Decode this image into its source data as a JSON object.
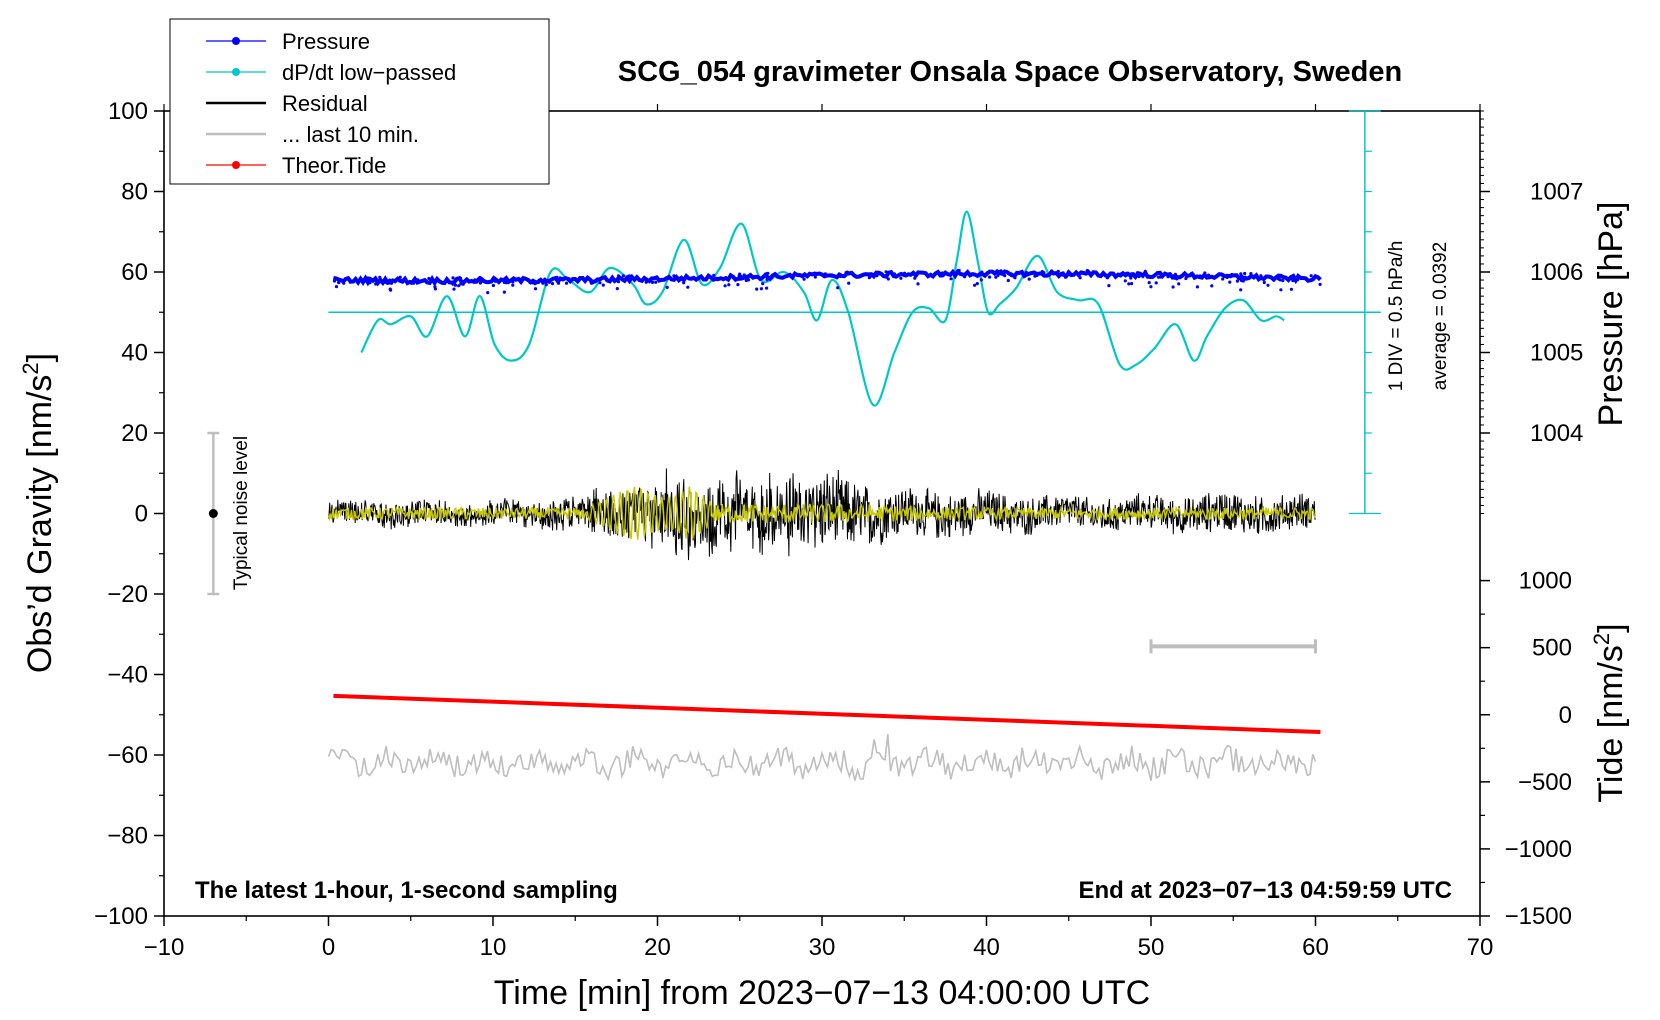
{
  "chart_data": {
    "type": "line",
    "title": "SCG_054 gravimeter Onsala Space Observatory, Sweden",
    "xlabel": "Time [min] from 2023−07−13 04:00:00 UTC",
    "ylabel": "Obs’d Gravity [nm/s",
    "ylabel_sup": "2",
    "ylabel_end": "]",
    "y2label_pressure": "Pressure [hPa]",
    "y2label_tide": "Tide [nm/s",
    "y2label_tide_sup": "2",
    "y2label_tide_end": "]",
    "xlim": [
      -10,
      70
    ],
    "ylim": [
      -100,
      100
    ],
    "x_ticks": [
      -10,
      0,
      10,
      20,
      30,
      40,
      50,
      60,
      70
    ],
    "x_tick_labels": [
      "−10",
      "0",
      "10",
      "20",
      "30",
      "40",
      "50",
      "60",
      "70"
    ],
    "y_ticks": [
      -100,
      -80,
      -60,
      -40,
      -20,
      0,
      20,
      40,
      60,
      80,
      100
    ],
    "y_tick_labels": [
      "−100",
      "−80",
      "−60",
      "−40",
      "−20",
      "0",
      "20",
      "40",
      "60",
      "80",
      "100"
    ],
    "pressure_axis": {
      "ticks": [
        1004,
        1005,
        1006,
        1007
      ],
      "tick_labels": [
        "1004",
        "1005",
        "1006",
        "1007"
      ],
      "gravity_equivalent": [
        20,
        40,
        60,
        80
      ]
    },
    "tide_axis": {
      "ticks": [
        -1500,
        -1000,
        -500,
        0,
        500,
        1000
      ],
      "tick_labels": [
        "−1500",
        "−1000",
        "−500",
        "0",
        "500",
        "1000"
      ],
      "gravity_equivalent": [
        -100,
        -83.33,
        -66.67,
        -50,
        -33.33,
        -16.67
      ]
    },
    "dpdt_scale": {
      "label_div": "1 DIV = 0.5 hPa/h",
      "label_avg": "average = 0.0392",
      "x": 63,
      "y_range": [
        0,
        100
      ],
      "zero_line_y": 50,
      "divisions": 10
    },
    "noise_bar": {
      "label": "Typical noise level",
      "x": -7,
      "y_range": [
        -20,
        20
      ]
    },
    "scale_bar": {
      "x_range": [
        50,
        60
      ],
      "y": -33
    },
    "footer_left": "The latest 1-hour, 1-second sampling",
    "footer_right": "End at 2023−07−13 04:59:59 UTC",
    "legend": [
      {
        "label": "Pressure",
        "color": "#0000ff",
        "marker": true
      },
      {
        "label": "dP/dt low−passed",
        "color": "#00c8c8",
        "marker": true
      },
      {
        "label": "Residual",
        "color": "#000000",
        "marker": false
      },
      {
        "label": "... last 10 min.",
        "color": "#bebebe",
        "marker": false
      },
      {
        "label": "Theor.Tide",
        "color": "#ff0000",
        "marker": true
      }
    ],
    "series": [
      {
        "name": "Pressure",
        "color": "#0000ff",
        "style": "dots",
        "x": [
          0.3,
          5,
          10,
          15,
          20,
          25,
          30,
          35,
          40,
          45,
          50,
          55,
          60.3
        ],
        "y": [
          58.0,
          57.8,
          57.9,
          58.0,
          58.3,
          58.7,
          59.2,
          59.4,
          59.6,
          59.5,
          59.3,
          58.8,
          58.3
        ]
      },
      {
        "name": "dP/dt low-passed",
        "color": "#00c8c8",
        "style": "line",
        "x": [
          2.0,
          3.0,
          3.8,
          5.0,
          6.0,
          7.2,
          8.3,
          9.2,
          10.1,
          11.1,
          12.2,
          13.5,
          14.6,
          15.9,
          17.1,
          18.5,
          19.3,
          20.3,
          21.6,
          22.7,
          23.8,
          25.1,
          26.3,
          27.7,
          28.9,
          29.7,
          30.6,
          31.6,
          33.1,
          34.4,
          35.5,
          36.5,
          37.5,
          38.2,
          38.8,
          39.5,
          40.1,
          40.8,
          41.8,
          43.1,
          44.3,
          45.6,
          46.8,
          48.1,
          49.1,
          50.2,
          51.5,
          52.6,
          53.4,
          54.5,
          55.6,
          56.7,
          57.6,
          58.1
        ],
        "y": [
          40,
          48,
          47,
          49,
          44,
          54,
          44,
          54,
          42,
          38,
          42,
          60,
          58,
          55,
          61,
          57,
          52,
          55,
          68,
          57,
          61,
          72,
          58,
          60,
          55,
          48,
          58,
          50,
          27,
          40,
          50,
          51,
          48,
          63,
          75,
          62,
          50,
          52,
          56,
          64,
          55,
          53,
          52,
          37,
          37,
          41,
          47,
          38,
          44,
          51,
          53,
          48,
          49,
          48
        ]
      },
      {
        "name": "Residual",
        "color": "#000000",
        "style": "noisy-line",
        "x": [
          0,
          5,
          10,
          15,
          18,
          22,
          25,
          30,
          31,
          35,
          40,
          45,
          50,
          55,
          60
        ],
        "amplitude": [
          3,
          3,
          3,
          4,
          7,
          10,
          9,
          10,
          9,
          6,
          5,
          4,
          4,
          5,
          4
        ]
      },
      {
        "name": "Low-passed residual",
        "color": "#c8c800",
        "style": "noisy-line",
        "x": [
          0,
          15.7,
          16.5,
          18.5,
          20.4,
          21.3,
          22.0,
          22.9,
          23.4,
          30,
          40,
          60
        ],
        "amplitude": [
          1.5,
          1.5,
          3,
          7,
          4,
          5,
          7,
          4,
          2.5,
          2.5,
          1.5,
          1.5
        ]
      },
      {
        "name": "... last 10 min.",
        "color": "#bebebe",
        "style": "noisy-line",
        "x_range": [
          0,
          60
        ],
        "baseline": -62,
        "amplitude": 3
      },
      {
        "name": "Theor.Tide",
        "color": "#ff0000",
        "style": "line",
        "x": [
          0.3,
          60.3
        ],
        "y": [
          -45.3,
          -54.3
        ]
      }
    ]
  }
}
